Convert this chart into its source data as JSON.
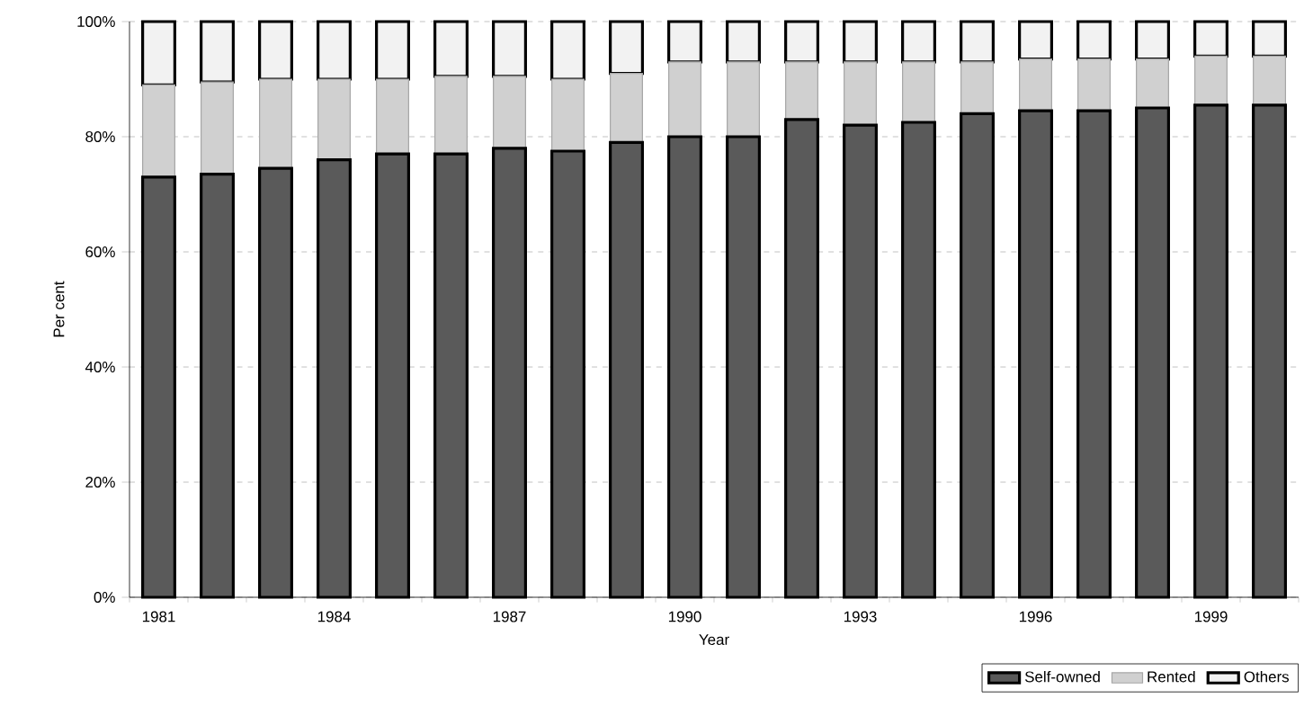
{
  "chart_data": {
    "type": "bar",
    "stacked": true,
    "xlabel": "Year",
    "ylabel": "Per cent",
    "categories": [
      "1981",
      null,
      null,
      "1984",
      null,
      null,
      "1987",
      null,
      null,
      "1990",
      null,
      null,
      "1993",
      null,
      null,
      "1996",
      null,
      null,
      "1999",
      null
    ],
    "series": [
      {
        "name": "Self-owned",
        "color": "#5a5a5a",
        "values": [
          73,
          73.5,
          74.5,
          76,
          77,
          77,
          78,
          77.5,
          79,
          80,
          80,
          83,
          82,
          82.5,
          84,
          84.5,
          84.5,
          85,
          85.5,
          85.5
        ]
      },
      {
        "name": "Rented",
        "color": "#d0d0d0",
        "values": [
          16,
          16,
          15.5,
          14,
          13,
          13.5,
          12.5,
          12.5,
          12,
          13,
          13,
          10,
          11,
          10.5,
          9,
          9,
          9,
          8.5,
          8.5,
          8.5
        ]
      },
      {
        "name": "Others",
        "color": "#f2f2f2",
        "values": [
          11,
          10.5,
          10,
          10,
          10,
          9.5,
          9.5,
          10,
          9,
          7,
          7,
          7,
          7,
          7,
          7,
          6.5,
          6.5,
          6.5,
          6,
          6
        ]
      }
    ],
    "ylim": [
      0,
      100
    ],
    "yticks": [
      {
        "value": 0,
        "label": "0%"
      },
      {
        "value": 20,
        "label": "20%"
      },
      {
        "value": 40,
        "label": "40%"
      },
      {
        "value": 60,
        "label": "60%"
      },
      {
        "value": 80,
        "label": "80%"
      },
      {
        "value": 100,
        "label": "100%"
      }
    ],
    "grid": "y",
    "legend": "bottom right"
  }
}
